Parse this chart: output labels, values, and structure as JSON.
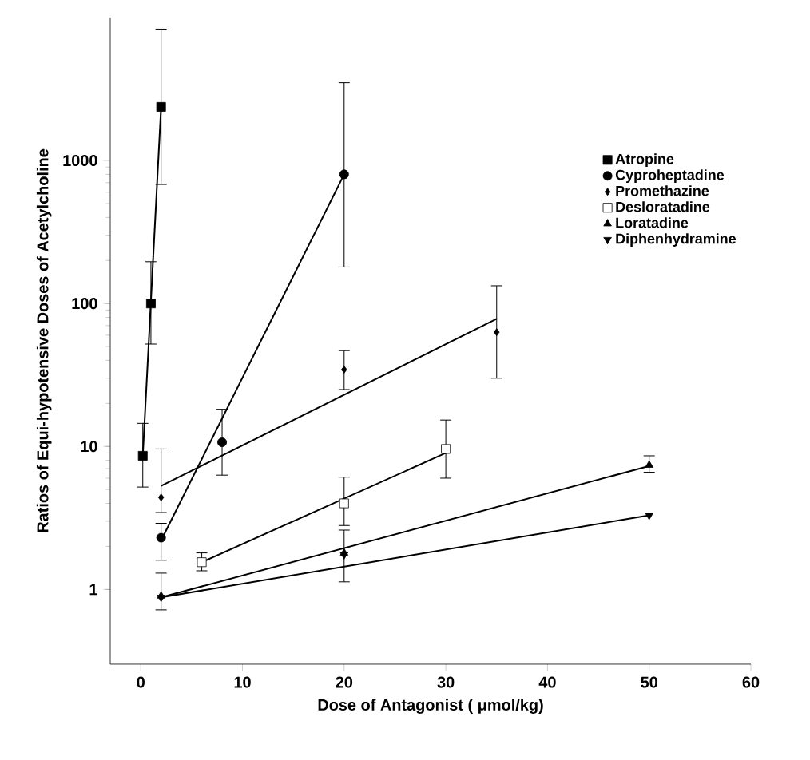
{
  "chart_data": {
    "type": "scatter",
    "xlabel": "Dose of Antagonist ( μmol/kg)",
    "ylabel": "Ratios of Equi-hypotensive Doses of Acetylcholine",
    "log": "y",
    "xlim": [
      -3,
      60
    ],
    "ylim": [
      0.3,
      10000
    ],
    "xticks": [
      0,
      10,
      20,
      30,
      40,
      50,
      60
    ],
    "yticks": [
      1,
      10,
      100,
      1000
    ],
    "legend": "right",
    "grid": false,
    "series": [
      {
        "name": "Atropine",
        "marker": "square",
        "color": "#000000",
        "x": [
          0.2,
          1,
          2
        ],
        "values": [
          8.6,
          100,
          2370
        ],
        "errors": [
          [
            5.2,
            14.5
          ],
          [
            52,
            196
          ],
          [
            680,
            8300
          ]
        ]
      },
      {
        "name": "Cyproheptadine",
        "marker": "circle",
        "color": "#000000",
        "x": [
          2,
          8,
          20
        ],
        "values": [
          2.3,
          10.7,
          800
        ],
        "errors": [
          [
            1.6,
            2.9
          ],
          [
            6.3,
            18.2
          ],
          [
            180,
            3500
          ]
        ]
      },
      {
        "name": "Promethazine",
        "marker": "diamond",
        "color": "#000000",
        "x": [
          2,
          20,
          35
        ],
        "values": [
          4.4,
          34.5,
          63
        ],
        "errors": [
          [
            3.45,
            9.6
          ],
          [
            25,
            46.8
          ],
          [
            30,
            133
          ]
        ]
      },
      {
        "name": "Desloratadine",
        "marker": "square",
        "color": "#ffffff",
        "x": [
          6,
          20,
          30
        ],
        "values": [
          1.55,
          4.0,
          9.6
        ],
        "errors": [
          [
            1.35,
            1.8
          ],
          [
            2.8,
            6.1
          ],
          [
            6.0,
            15.3
          ]
        ]
      },
      {
        "name": "Loratadine",
        "marker": "triangle",
        "color": "#000000",
        "x": [
          2,
          20,
          50
        ],
        "values": [
          0.9,
          1.8,
          7.4
        ],
        "errors": [
          [
            0.72,
            1.3
          ],
          [
            1.13,
            2.6
          ],
          [
            6.6,
            8.6
          ]
        ]
      },
      {
        "name": "Diphenhydramine",
        "marker": "triangle-down",
        "color": "#000000",
        "x": [
          2,
          20,
          50
        ],
        "values": [
          0.88,
          1.75,
          3.3
        ]
      },
      {
        "type": "line",
        "color": "#000000",
        "x": [
          0.2,
          2
        ],
        "values": [
          8.6,
          2370
        ]
      },
      {
        "type": "line",
        "color": "#000000",
        "x": [
          2,
          20
        ],
        "values": [
          2.2,
          800
        ]
      },
      {
        "type": "line",
        "color": "#000000",
        "x": [
          2,
          35
        ],
        "values": [
          5.3,
          78
        ]
      },
      {
        "type": "line",
        "color": "#000000",
        "x": [
          6,
          30
        ],
        "values": [
          1.55,
          9.0
        ]
      },
      {
        "type": "line",
        "color": "#000000",
        "x": [
          2,
          50
        ],
        "values": [
          0.88,
          7.3
        ]
      },
      {
        "type": "line",
        "color": "#000000",
        "x": [
          2,
          50
        ],
        "values": [
          0.88,
          3.3
        ]
      }
    ]
  }
}
